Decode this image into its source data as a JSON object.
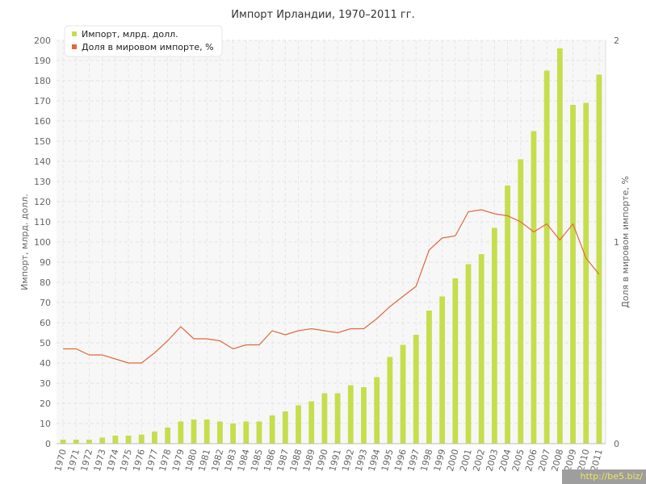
{
  "chart_data": {
    "type": "bar",
    "title": "Импорт Ирландии, 1970–2011 гг.",
    "ylabel_left": "Импорт, млрд. долл.",
    "ylabel_right": "Доля в мировом импорте, %",
    "ylim_left": [
      0,
      200
    ],
    "ylim_right": [
      0,
      2
    ],
    "yticks_left": [
      "0",
      "10",
      "20",
      "30",
      "40",
      "50",
      "60",
      "70",
      "80",
      "90",
      "100",
      "110",
      "120",
      "130",
      "140",
      "150",
      "160",
      "170",
      "180",
      "190",
      "200"
    ],
    "yticks_right": [
      "0",
      "1",
      "2"
    ],
    "grid": true,
    "legend_position": "top-left",
    "categories": [
      "1970",
      "1971",
      "1972",
      "1973",
      "1974",
      "1975",
      "1976",
      "1977",
      "1978",
      "1979",
      "1980",
      "1981",
      "1982",
      "1983",
      "1984",
      "1985",
      "1986",
      "1987",
      "1988",
      "1989",
      "1990",
      "1991",
      "1992",
      "1993",
      "1994",
      "1995",
      "1996",
      "1997",
      "1998",
      "1999",
      "2000",
      "2001",
      "2002",
      "2003",
      "2004",
      "2005",
      "2006",
      "2007",
      "2008",
      "2009",
      "2010",
      "2011"
    ],
    "series": [
      {
        "name": "Импорт, млрд. долл.",
        "type": "bar",
        "axis": "left",
        "color": "#c5de4c",
        "values": [
          2,
          2,
          2,
          3,
          4,
          4,
          4.5,
          6,
          8,
          11,
          12,
          12,
          11,
          10,
          11,
          11,
          14,
          16,
          19,
          21,
          25,
          25,
          29,
          28,
          33,
          43,
          49,
          54,
          66,
          73,
          82,
          89,
          94,
          107,
          128,
          141,
          155,
          185,
          196,
          168,
          169,
          183
        ]
      },
      {
        "name": "Доля в мировом импорте, %",
        "type": "line",
        "axis": "right",
        "color": "#e06a3a",
        "values": [
          0.47,
          0.47,
          0.44,
          0.44,
          0.42,
          0.4,
          0.4,
          0.45,
          0.51,
          0.58,
          0.52,
          0.52,
          0.51,
          0.47,
          0.49,
          0.49,
          0.56,
          0.54,
          0.56,
          0.57,
          0.56,
          0.55,
          0.57,
          0.57,
          0.62,
          0.68,
          0.73,
          0.78,
          0.96,
          1.02,
          1.03,
          1.15,
          1.16,
          1.14,
          1.13,
          1.1,
          1.05,
          1.09,
          1.01,
          1.09,
          0.92,
          0.84
        ]
      }
    ]
  },
  "watermark": "http://be5.biz/"
}
